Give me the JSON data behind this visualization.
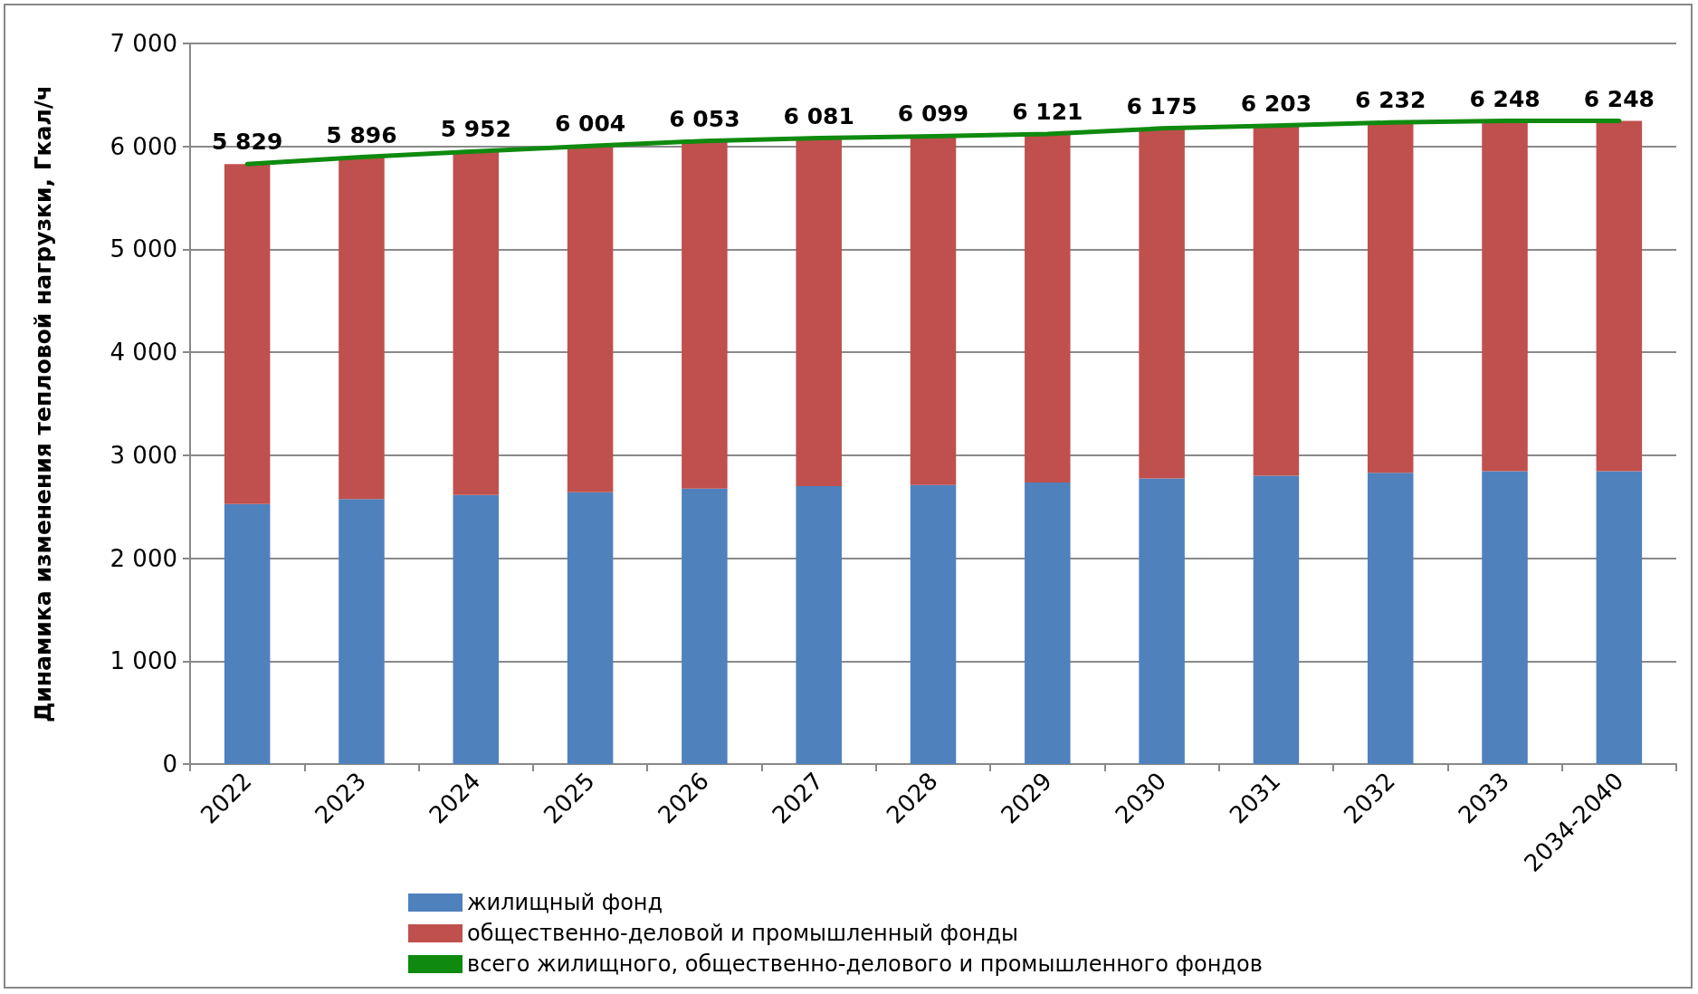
{
  "chart_data": {
    "type": "bar",
    "stacked": true,
    "ylabel": "Динамика изменения тепловой нагрузки, Гкал/ч",
    "categories": [
      "2022",
      "2023",
      "2024",
      "2025",
      "2026",
      "2027",
      "2028",
      "2029",
      "2030",
      "2031",
      "2032",
      "2033",
      "2034-2040"
    ],
    "series": [
      {
        "name": "жилищный фонд",
        "color": "#4f81bd",
        "values": [
          2525,
          2575,
          2615,
          2640,
          2675,
          2700,
          2710,
          2735,
          2775,
          2800,
          2830,
          2845,
          2845
        ]
      },
      {
        "name": "общественно-деловой и промышленный фонды",
        "color": "#c0504d",
        "values": [
          3304,
          3321,
          3337,
          3364,
          3378,
          3381,
          3389,
          3386,
          3400,
          3403,
          3402,
          3403,
          3403
        ]
      },
      {
        "name": "всего жилищного, общественно-делового и промышленного фондов",
        "type": "line",
        "color": "#0f8a0f",
        "values": [
          5829,
          5896,
          5952,
          6004,
          6053,
          6081,
          6099,
          6121,
          6175,
          6203,
          6232,
          6248,
          6248
        ],
        "value_labels": [
          "5 829",
          "5 896",
          "5 952",
          "6 004",
          "6 053",
          "6 081",
          "6 099",
          "6 121",
          "6 175",
          "6 203",
          "6 232",
          "6 248",
          "6 248"
        ]
      }
    ],
    "ylim": [
      0,
      7000
    ],
    "yticks": [
      {
        "value": 0,
        "label": "0"
      },
      {
        "value": 1000,
        "label": "1 000"
      },
      {
        "value": 2000,
        "label": "2 000"
      },
      {
        "value": 3000,
        "label": "3 000"
      },
      {
        "value": 4000,
        "label": "4 000"
      },
      {
        "value": 5000,
        "label": "5 000"
      },
      {
        "value": 6000,
        "label": "6 000"
      },
      {
        "value": 7000,
        "label": "7 000"
      }
    ],
    "grid": "y",
    "legend": "bottom",
    "marker": "none",
    "line_style": "solid"
  }
}
